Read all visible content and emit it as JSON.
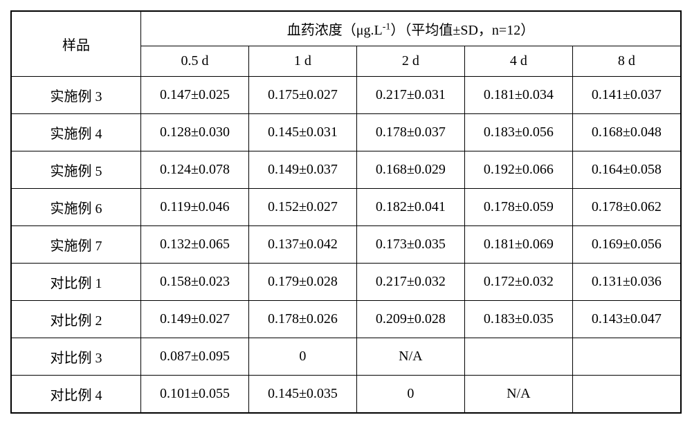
{
  "header": {
    "sample_label": "样品",
    "conc_label_prefix": "血药浓度（μg.L",
    "conc_label_sup": "-1",
    "conc_label_suffix": "）（平均值±SD，n=12）",
    "timepoints": [
      "0.5 d",
      "1 d",
      "2 d",
      "4 d",
      "8 d"
    ]
  },
  "rows": [
    {
      "sample": "实施例 3",
      "cells": [
        "0.147±0.025",
        "0.175±0.027",
        "0.217±0.031",
        "0.181±0.034",
        "0.141±0.037"
      ]
    },
    {
      "sample": "实施例 4",
      "cells": [
        "0.128±0.030",
        "0.145±0.031",
        "0.178±0.037",
        "0.183±0.056",
        "0.168±0.048"
      ]
    },
    {
      "sample": "实施例 5",
      "cells": [
        "0.124±0.078",
        "0.149±0.037",
        "0.168±0.029",
        "0.192±0.066",
        "0.164±0.058"
      ]
    },
    {
      "sample": "实施例 6",
      "cells": [
        "0.119±0.046",
        "0.152±0.027",
        "0.182±0.041",
        "0.178±0.059",
        "0.178±0.062"
      ]
    },
    {
      "sample": "实施例 7",
      "cells": [
        "0.132±0.065",
        "0.137±0.042",
        "0.173±0.035",
        "0.181±0.069",
        "0.169±0.056"
      ]
    },
    {
      "sample": "对比例 1",
      "cells": [
        "0.158±0.023",
        "0.179±0.028",
        "0.217±0.032",
        "0.172±0.032",
        "0.131±0.036"
      ]
    },
    {
      "sample": "对比例 2",
      "cells": [
        "0.149±0.027",
        "0.178±0.026",
        "0.209±0.028",
        "0.183±0.035",
        "0.143±0.047"
      ]
    },
    {
      "sample": "对比例 3",
      "cells": [
        "0.087±0.095",
        "0",
        "N/A",
        "",
        ""
      ]
    },
    {
      "sample": "对比例 4",
      "cells": [
        "0.101±0.055",
        "0.145±0.035",
        "0",
        "N/A",
        ""
      ]
    }
  ]
}
